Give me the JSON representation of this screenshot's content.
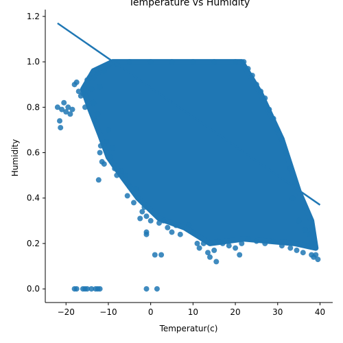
{
  "chart_data": {
    "type": "scatter",
    "title": "Temperature vs Humidity",
    "xlabel": "Temperatur(c)",
    "ylabel": "Humidity",
    "xlim": [
      -24.9,
      43.0
    ],
    "ylim": [
      -0.06,
      1.23
    ],
    "xticks": [
      -20,
      -10,
      0,
      10,
      20,
      30,
      40
    ],
    "yticks": [
      0.0,
      0.2,
      0.4,
      0.6,
      0.8,
      1.0,
      1.2
    ],
    "xtick_labels": [
      "−20",
      "−10",
      "0",
      "10",
      "20",
      "30",
      "40"
    ],
    "ytick_labels": [
      "0.0",
      "0.2",
      "0.4",
      "0.6",
      "0.8",
      "1.0",
      "1.2"
    ],
    "grid": false,
    "series": [
      {
        "color": "#1f77b4",
        "points": [
          [
            -22.0,
            0.8
          ],
          [
            -21.5,
            0.74
          ],
          [
            -21.3,
            0.71
          ],
          [
            -21.0,
            0.79
          ],
          [
            -20.5,
            0.82
          ],
          [
            -20.0,
            0.78
          ],
          [
            -19.5,
            0.8
          ],
          [
            -19.0,
            0.77
          ],
          [
            -18.5,
            0.79
          ],
          [
            -18.0,
            0.9
          ],
          [
            -17.5,
            0.91
          ],
          [
            -17.0,
            0.87
          ],
          [
            -16.5,
            0.85
          ],
          [
            -16.0,
            0.86
          ],
          [
            -15.5,
            0.8
          ],
          [
            -15.0,
            0.92
          ],
          [
            -14.5,
            0.93
          ],
          [
            -14.0,
            0.88
          ],
          [
            -13.5,
            0.82
          ],
          [
            -13.0,
            0.74
          ],
          [
            -12.5,
            0.77
          ],
          [
            -12.0,
            0.89
          ],
          [
            -11.8,
            0.63
          ],
          [
            -12.0,
            0.6
          ],
          [
            -12.3,
            0.48
          ],
          [
            -11.5,
            0.56
          ],
          [
            -11.0,
            0.55
          ],
          [
            -10.5,
            0.65
          ],
          [
            -10.0,
            0.7
          ],
          [
            -9.5,
            0.58
          ],
          [
            -9.0,
            0.62
          ],
          [
            -8.5,
            0.53
          ],
          [
            -8.0,
            0.5
          ],
          [
            -7.0,
            0.52
          ],
          [
            -6.0,
            0.5
          ],
          [
            -5.5,
            0.41
          ],
          [
            -5.0,
            0.45
          ],
          [
            -4.0,
            0.38
          ],
          [
            -3.5,
            0.44
          ],
          [
            -3.0,
            0.4
          ],
          [
            -2.5,
            0.31
          ],
          [
            -2.0,
            0.34
          ],
          [
            -1.5,
            0.36
          ],
          [
            -1.0,
            0.32
          ],
          [
            -1.0,
            0.25
          ],
          [
            -1.0,
            0.24
          ],
          [
            0.0,
            0.3
          ],
          [
            1.0,
            0.15
          ],
          [
            2.5,
            0.15
          ],
          [
            2.0,
            0.29
          ],
          [
            3.0,
            0.3
          ],
          [
            4.0,
            0.27
          ],
          [
            5.0,
            0.25
          ],
          [
            6.0,
            0.28
          ],
          [
            7.0,
            0.24
          ],
          [
            9.0,
            0.28
          ],
          [
            10.0,
            0.25
          ],
          [
            11.0,
            0.2
          ],
          [
            11.5,
            0.18
          ],
          [
            12.5,
            0.2
          ],
          [
            13.5,
            0.16
          ],
          [
            14.0,
            0.14
          ],
          [
            15.0,
            0.17
          ],
          [
            15.5,
            0.12
          ],
          [
            16.0,
            0.21
          ],
          [
            17.0,
            0.2
          ],
          [
            18.5,
            0.19
          ],
          [
            20.0,
            0.18
          ],
          [
            21.0,
            0.15
          ],
          [
            21.5,
            0.2
          ],
          [
            23.0,
            0.22
          ],
          [
            25.0,
            0.21
          ],
          [
            27.0,
            0.2
          ],
          [
            29.0,
            0.21
          ],
          [
            31.0,
            0.19
          ],
          [
            33.0,
            0.18
          ],
          [
            34.5,
            0.17
          ],
          [
            36.0,
            0.16
          ],
          [
            37.0,
            0.19
          ],
          [
            38.0,
            0.15
          ],
          [
            38.5,
            0.14
          ],
          [
            39.0,
            0.15
          ],
          [
            39.5,
            0.13
          ],
          [
            38.0,
            0.2
          ],
          [
            37.5,
            0.24
          ],
          [
            36.5,
            0.26
          ],
          [
            35.0,
            0.3
          ],
          [
            34.0,
            0.47
          ],
          [
            33.5,
            0.4
          ],
          [
            33.0,
            0.53
          ],
          [
            32.0,
            0.6
          ],
          [
            31.0,
            0.66
          ],
          [
            30.0,
            0.7
          ],
          [
            29.0,
            0.75
          ],
          [
            28.0,
            0.79
          ],
          [
            27.0,
            0.84
          ],
          [
            26.0,
            0.87
          ],
          [
            25.0,
            0.9
          ],
          [
            24.0,
            0.94
          ],
          [
            23.0,
            0.97
          ],
          [
            22.0,
            1.0
          ],
          [
            20.0,
            1.0
          ],
          [
            15.0,
            1.0
          ],
          [
            10.0,
            1.0
          ],
          [
            5.0,
            1.0
          ],
          [
            0.0,
            1.0
          ],
          [
            -5.0,
            1.0
          ],
          [
            -8.0,
            0.99
          ],
          [
            -10.0,
            0.98
          ],
          [
            -11.0,
            0.96
          ],
          [
            -12.5,
            0.95
          ],
          [
            -13.5,
            0.93
          ],
          [
            -18.0,
            0.0
          ],
          [
            -17.5,
            0.0
          ],
          [
            -16.0,
            0.0
          ],
          [
            -15.5,
            0.0
          ],
          [
            -15.0,
            0.0
          ],
          [
            -14.0,
            0.0
          ],
          [
            -13.0,
            0.0
          ],
          [
            -12.5,
            0.0
          ],
          [
            -12.0,
            0.0
          ],
          [
            -1.0,
            0.0
          ],
          [
            1.5,
            0.0
          ]
        ]
      }
    ],
    "regression_line": {
      "x": [
        -22.0,
        40.0
      ],
      "y": [
        1.17,
        0.37
      ]
    }
  }
}
